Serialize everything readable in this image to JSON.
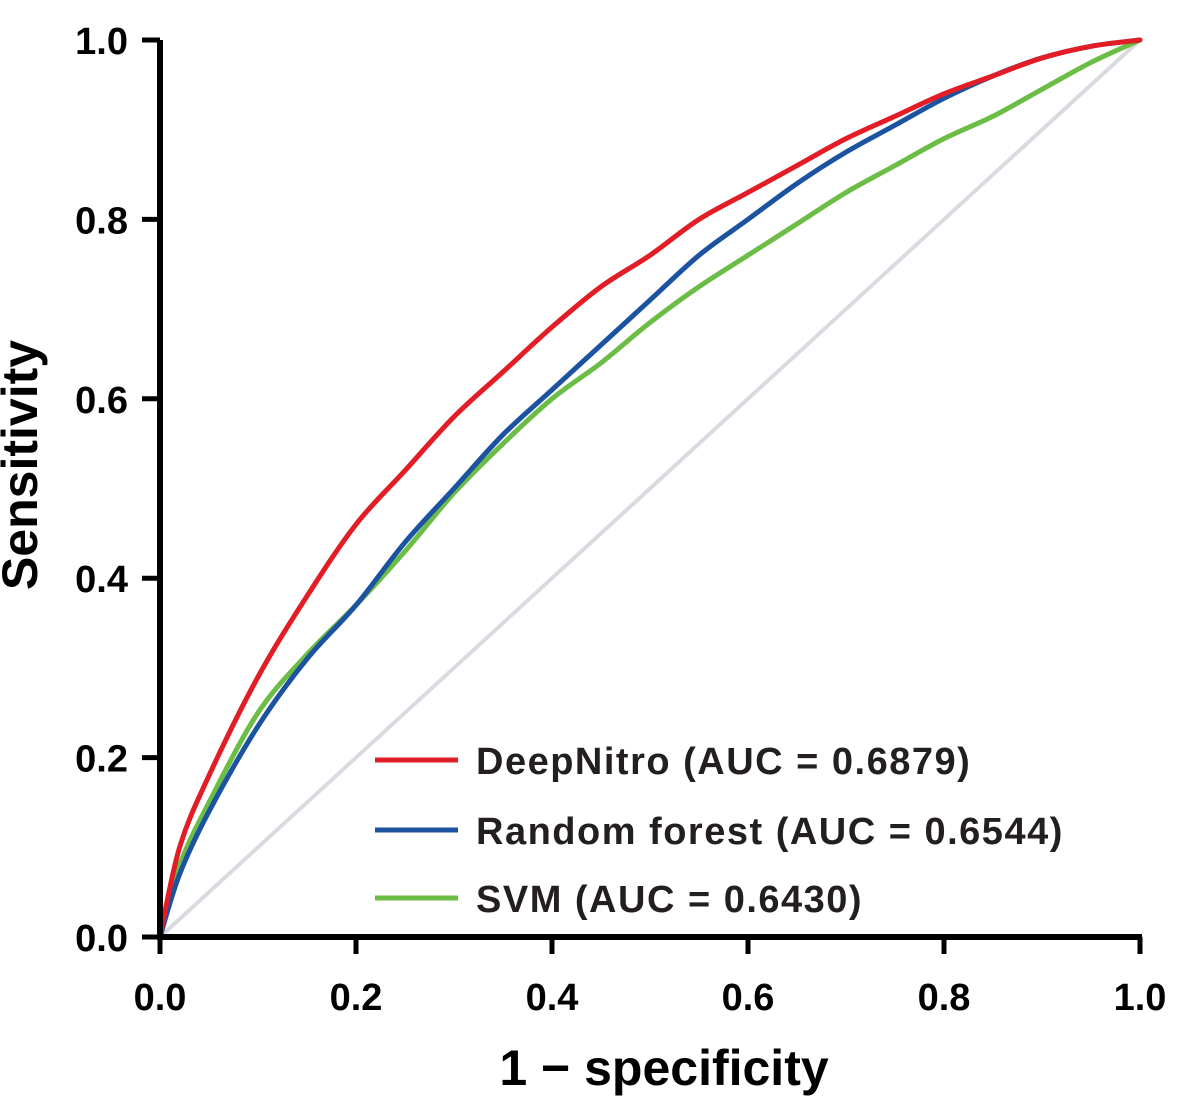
{
  "chart_data": {
    "type": "line",
    "title": "",
    "xlabel": "1 − specificity",
    "ylabel": "Sensitivity",
    "xlim": [
      0,
      1
    ],
    "ylim": [
      0,
      1
    ],
    "x_ticks": [
      "0.0",
      "0.2",
      "0.4",
      "0.6",
      "0.8",
      "1.0"
    ],
    "y_ticks": [
      "0.0",
      "0.2",
      "0.4",
      "0.6",
      "0.8",
      "1.0"
    ],
    "grid": false,
    "legend_position": "bottom-right",
    "reference_line": {
      "x": [
        0,
        1
      ],
      "y": [
        0,
        1
      ],
      "color": "#d9dbe0"
    },
    "series": [
      {
        "name": "DeepNitro (AUC = 0.6879)",
        "color": "#e31d25",
        "x": [
          0,
          0.02,
          0.05,
          0.1,
          0.15,
          0.2,
          0.25,
          0.3,
          0.35,
          0.4,
          0.45,
          0.5,
          0.55,
          0.6,
          0.65,
          0.7,
          0.75,
          0.8,
          0.85,
          0.9,
          0.95,
          1.0
        ],
        "y": [
          0,
          0.1,
          0.18,
          0.29,
          0.38,
          0.46,
          0.52,
          0.58,
          0.63,
          0.68,
          0.725,
          0.76,
          0.8,
          0.83,
          0.86,
          0.89,
          0.915,
          0.94,
          0.96,
          0.98,
          0.993,
          1.0
        ]
      },
      {
        "name": "Random forest (AUC = 0.6544)",
        "color": "#1b53a1",
        "x": [
          0,
          0.02,
          0.05,
          0.1,
          0.15,
          0.2,
          0.25,
          0.3,
          0.35,
          0.4,
          0.45,
          0.5,
          0.55,
          0.6,
          0.65,
          0.7,
          0.75,
          0.8,
          0.85,
          0.9,
          0.95,
          1.0
        ],
        "y": [
          0,
          0.07,
          0.14,
          0.235,
          0.31,
          0.37,
          0.44,
          0.5,
          0.56,
          0.61,
          0.66,
          0.71,
          0.76,
          0.8,
          0.84,
          0.875,
          0.905,
          0.935,
          0.96,
          0.98,
          0.993,
          1.0
        ]
      },
      {
        "name": "SVM (AUC = 0.6430)",
        "color": "#6cbd45",
        "x": [
          0,
          0.02,
          0.05,
          0.1,
          0.15,
          0.2,
          0.25,
          0.3,
          0.35,
          0.4,
          0.45,
          0.5,
          0.55,
          0.6,
          0.65,
          0.7,
          0.75,
          0.8,
          0.85,
          0.9,
          0.95,
          1.0
        ],
        "y": [
          0,
          0.08,
          0.15,
          0.25,
          0.315,
          0.37,
          0.43,
          0.495,
          0.55,
          0.6,
          0.64,
          0.685,
          0.725,
          0.76,
          0.795,
          0.83,
          0.86,
          0.89,
          0.915,
          0.945,
          0.975,
          1.0
        ]
      }
    ]
  }
}
